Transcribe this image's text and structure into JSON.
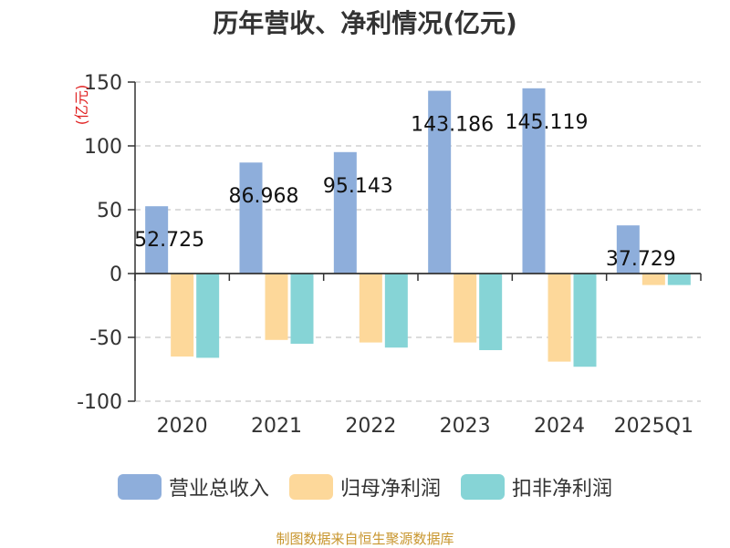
{
  "chart_data": {
    "type": "bar",
    "title": "历年营收、净利情况(亿元)",
    "ylabel": "(亿元)",
    "categories": [
      "2020",
      "2021",
      "2022",
      "2023",
      "2024",
      "2025Q1"
    ],
    "ylim": [
      -100,
      150
    ],
    "yticks": [
      150,
      100,
      50,
      0,
      -50,
      -100
    ],
    "grid": true,
    "legend_position": "bottom",
    "series": [
      {
        "name": "营业总收入",
        "color": "#8eaedb",
        "values": [
          52.725,
          86.968,
          95.143,
          143.186,
          145.119,
          37.729
        ],
        "labels": [
          "52.725",
          "86.968",
          "95.143",
          "143.186",
          "145.119",
          "37.729"
        ]
      },
      {
        "name": "归母净利润",
        "color": "#fdd89a",
        "values": [
          -65,
          -52,
          -54,
          -54,
          -69,
          -9
        ]
      },
      {
        "name": "扣非净利润",
        "color": "#86d4d6",
        "values": [
          -66,
          -55,
          -58,
          -60,
          -73,
          -9
        ]
      }
    ]
  },
  "source": {
    "text": "制图数据来自恒生聚源数据库",
    "color": "#c8962e"
  },
  "ylabel_color": "#e02020"
}
